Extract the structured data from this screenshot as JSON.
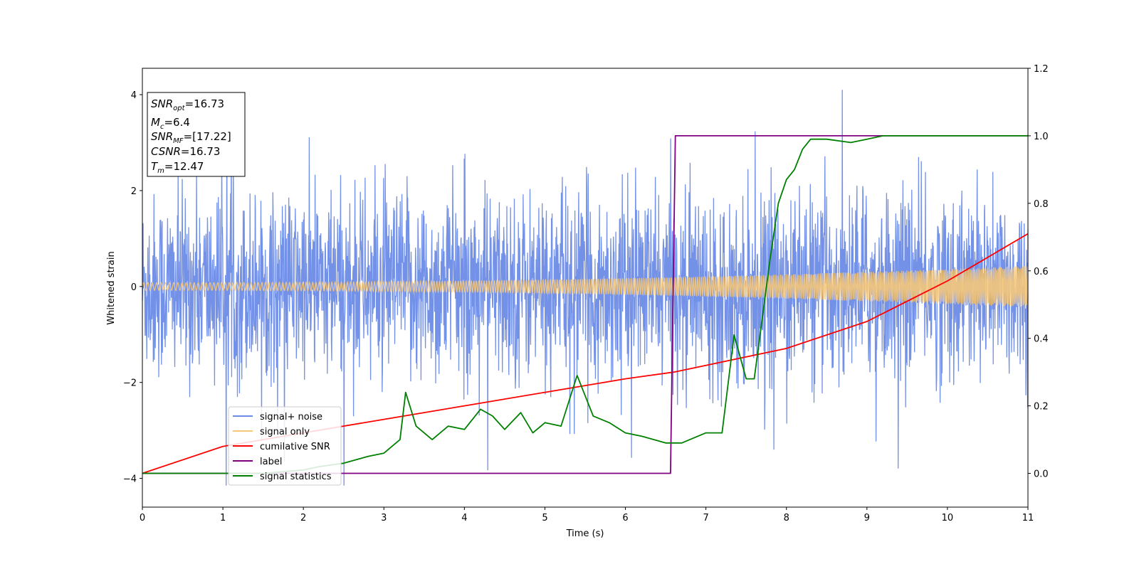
{
  "chart_data": {
    "type": "line",
    "xlabel": "Time (s)",
    "ylabel": "Whitened strain",
    "xlim": [
      0,
      11
    ],
    "ylim_left": [
      -4.6,
      4.55
    ],
    "ylim_right": [
      -0.1,
      1.2
    ],
    "x_ticks": [
      "0",
      "1",
      "2",
      "3",
      "4",
      "5",
      "6",
      "7",
      "8",
      "9",
      "10",
      "11"
    ],
    "y_ticks_left": [
      "4",
      "2",
      "0",
      "−2",
      "−4"
    ],
    "y_ticks_right": [
      "1.2",
      "1.0",
      "0.8",
      "0.6",
      "0.4",
      "0.2",
      "0.0"
    ],
    "grid": false,
    "legend_position": "lower-left",
    "series": [
      {
        "name": "signal+ noise",
        "axis": "left",
        "color": "#6b8be6",
        "description_values": "noise band roughly within [-2.4, 2.4] with spikes up to about ±4 over t in [0, 11]"
      },
      {
        "name": "signal only",
        "axis": "left",
        "color": "#f5c77a",
        "amplitude_start": 0.08,
        "amplitude_end": 0.43
      },
      {
        "name": "cumilative SNR",
        "axis": "right",
        "color": "#ff0000",
        "x": [
          0,
          1,
          2,
          3,
          4,
          5,
          6,
          6.6,
          7,
          8,
          9,
          10,
          10.5,
          11
        ],
        "values": [
          0.0,
          0.08,
          0.12,
          0.16,
          0.2,
          0.24,
          0.28,
          0.3,
          0.32,
          0.37,
          0.45,
          0.57,
          0.64,
          0.71
        ]
      },
      {
        "name": "label",
        "axis": "right",
        "color": "#800080",
        "x": [
          0,
          6.56,
          6.62,
          11
        ],
        "values": [
          0.0,
          0.0,
          1.0,
          1.0
        ]
      },
      {
        "name": "signal statistics",
        "axis": "right",
        "color": "#008000",
        "x": [
          0,
          0.5,
          1,
          1.5,
          2,
          2.2,
          2.5,
          2.8,
          3.0,
          3.2,
          3.27,
          3.4,
          3.6,
          3.8,
          4.0,
          4.2,
          4.35,
          4.5,
          4.7,
          4.85,
          5.0,
          5.2,
          5.4,
          5.6,
          5.8,
          6.0,
          6.2,
          6.5,
          6.7,
          6.9,
          7.0,
          7.2,
          7.35,
          7.5,
          7.6,
          7.7,
          7.8,
          7.9,
          8.0,
          8.1,
          8.2,
          8.3,
          8.5,
          8.8,
          9.0,
          9.2,
          9.5,
          10,
          10.5,
          11
        ],
        "values": [
          0.0,
          0.0,
          0.0,
          0.0,
          0.01,
          0.02,
          0.03,
          0.05,
          0.06,
          0.1,
          0.24,
          0.14,
          0.1,
          0.14,
          0.13,
          0.19,
          0.17,
          0.13,
          0.18,
          0.12,
          0.15,
          0.14,
          0.29,
          0.17,
          0.15,
          0.12,
          0.11,
          0.09,
          0.09,
          0.11,
          0.12,
          0.12,
          0.41,
          0.28,
          0.28,
          0.46,
          0.64,
          0.8,
          0.87,
          0.9,
          0.96,
          0.99,
          0.99,
          0.98,
          0.99,
          1.0,
          1.0,
          1.0,
          1.0,
          1.0
        ]
      }
    ]
  },
  "info_box": {
    "snr_opt_label": "SNR",
    "snr_opt_sub": "opt",
    "snr_opt_value": "=16.73",
    "mc_label": "M",
    "mc_sub": "c",
    "mc_value": "=6.4",
    "snr_mf_label": "SNR",
    "snr_mf_sub": "MF",
    "snr_mf_value": "=[17.22]",
    "csnr_label": "CSNR",
    "csnr_value": "=16.73",
    "tm_label": "T",
    "tm_sub": "m",
    "tm_value": "=12.47"
  },
  "colors": {
    "noise": "#6b8be6",
    "signal": "#f5c77a",
    "cumulative": "#ff0000",
    "label": "#800080",
    "stats": "#008000"
  }
}
